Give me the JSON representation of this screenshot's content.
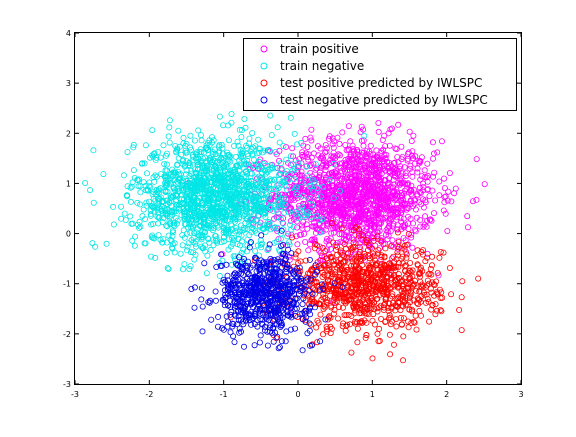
{
  "chart_data": {
    "type": "scatter",
    "title": "",
    "xlabel": "",
    "ylabel": "",
    "xlim": [
      -3,
      3
    ],
    "ylim": [
      -3,
      4
    ],
    "xticks": [
      "-3",
      "-2",
      "-1",
      "0",
      "1",
      "2",
      "3"
    ],
    "yticks": [
      "-3",
      "-2",
      "-1",
      "0",
      "1",
      "2",
      "3",
      "4"
    ],
    "grid": false,
    "legend_position": "top-right",
    "marker": "circle-open",
    "series": [
      {
        "name": "train positive",
        "color": "#ff00ff",
        "center": [
          0.75,
          0.75
        ],
        "spread": [
          0.55,
          0.55
        ],
        "n_points": 1500
      },
      {
        "name": "train negative",
        "color": "#00e5e5",
        "center": [
          -1.1,
          0.75
        ],
        "spread": [
          0.55,
          0.55
        ],
        "n_points": 1500
      },
      {
        "name": "test positive predicted by IWLSPC",
        "color": "#ff0000",
        "center": [
          0.9,
          -1.05
        ],
        "spread": [
          0.5,
          0.42
        ],
        "n_points": 900
      },
      {
        "name": "test negative predicted by IWLSPC",
        "color": "#0000e6",
        "center": [
          -0.45,
          -1.2
        ],
        "spread": [
          0.32,
          0.38
        ],
        "n_points": 700
      }
    ]
  }
}
